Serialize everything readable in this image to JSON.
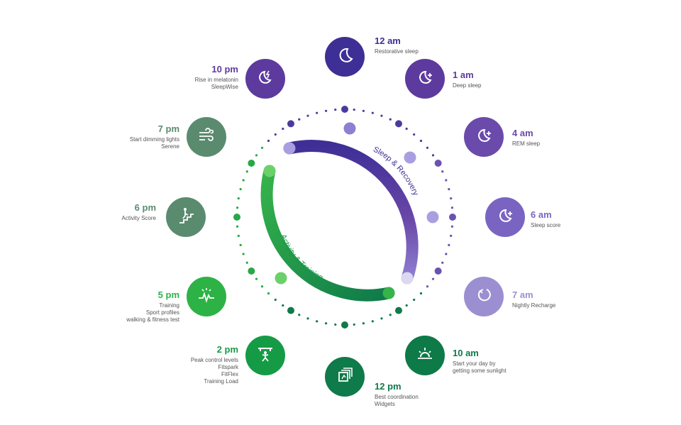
{
  "arc_labels": {
    "sleep": "Sleep & Recovery",
    "activity": "Activity & Training"
  },
  "colors": {
    "sleep_dark": "#3e2f96",
    "sleep_mid": "#6a47a8",
    "sleep_light": "#8e7fd0",
    "activity_light": "#36b34a",
    "activity_dark": "#0f7a4a",
    "gray_green": "#5a8b6f"
  },
  "nodes": [
    {
      "time": "12 am",
      "lines": [
        "Restorative sleep"
      ],
      "icon": "moon-icon",
      "color": "#3e2f96"
    },
    {
      "time": "1 am",
      "lines": [
        "Deep sleep"
      ],
      "icon": "moon-plus-icon",
      "color": "#5d3a9e"
    },
    {
      "time": "4 am",
      "lines": [
        "REM sleep"
      ],
      "icon": "moon-plus-icon",
      "color": "#6a4aaa"
    },
    {
      "time": "6 am",
      "lines": [
        "Sleep score"
      ],
      "icon": "moon-plus-icon",
      "color": "#7a64c2"
    },
    {
      "time": "7 am",
      "lines": [
        "Nightly Recharge"
      ],
      "icon": "recharge-icon",
      "color": "#9b8fd2"
    },
    {
      "time": "10 am",
      "lines": [
        "Start your day by",
        "getting some sunlight"
      ],
      "icon": "sunrise-icon",
      "color": "#0d7a48"
    },
    {
      "time": "12 pm",
      "lines": [
        "Best coordination",
        "Widgets"
      ],
      "icon": "widgets-icon",
      "color": "#0f7a4a"
    },
    {
      "time": "2 pm",
      "lines": [
        "Peak control levels",
        "Fitspark",
        "FitFlex",
        "Training Load"
      ],
      "icon": "workout-icon",
      "color": "#159b45"
    },
    {
      "time": "5 pm",
      "lines": [
        "Training",
        "Sport profiles",
        "walking & fitness test"
      ],
      "icon": "training-icon",
      "color": "#2db246"
    },
    {
      "time": "6 pm",
      "lines": [
        "Activity Score"
      ],
      "icon": "stairs-icon",
      "color": "#5a8b6f"
    },
    {
      "time": "7 pm",
      "lines": [
        "Start dimming lights",
        "Serene"
      ],
      "icon": "breathing-icon",
      "color": "#5a8b6f"
    },
    {
      "time": "10 pm",
      "lines": [
        "Rise in melatonin",
        "SleepWise"
      ],
      "icon": "moon-bolt-icon",
      "color": "#5c3a9e"
    }
  ]
}
